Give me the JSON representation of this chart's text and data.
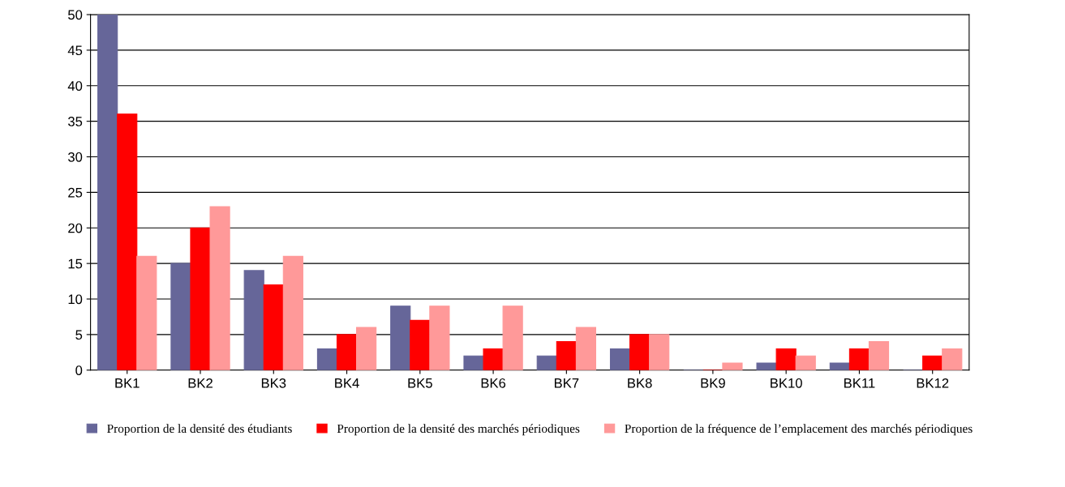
{
  "chart_data": {
    "type": "bar",
    "categories": [
      "BK1",
      "BK2",
      "BK3",
      "BK4",
      "BK5",
      "BK6",
      "BK7",
      "BK8",
      "BK9",
      "BK10",
      "BK11",
      "BK12"
    ],
    "series": [
      {
        "name": "Proportion de la densité des étudiants",
        "color": "#666699",
        "values": [
          50,
          15,
          14,
          3,
          9,
          2,
          2,
          3,
          0,
          1,
          1,
          0
        ]
      },
      {
        "name": "Proportion de la densité des marchés périodiques",
        "color": "#ff0000",
        "values": [
          36,
          20,
          12,
          5,
          7,
          3,
          4,
          5,
          0,
          3,
          3,
          2
        ]
      },
      {
        "name": "Proportion de la fréquence de l’emplacement des marchés périodiques",
        "color": "#ff9999",
        "values": [
          16,
          23,
          16,
          6,
          9,
          9,
          6,
          5,
          1,
          2,
          4,
          3
        ]
      }
    ],
    "ylim": [
      0,
      50
    ],
    "yticks": [
      0,
      5,
      10,
      15,
      20,
      25,
      30,
      35,
      40,
      45,
      50
    ],
    "grid": "y",
    "legend": "bottom"
  }
}
